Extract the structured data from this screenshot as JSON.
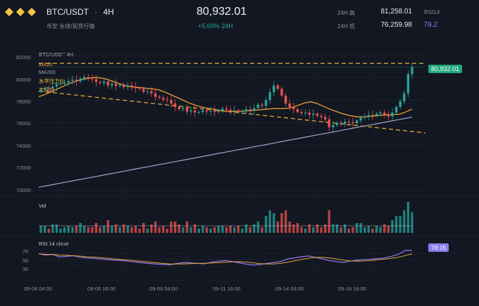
{
  "header": {
    "pair": "BTC/USDT",
    "separator": "·",
    "timeframe": "4H",
    "subtitle": "币安 永续/现货行情",
    "price": "80,932.01",
    "change": "+5.69% 24H",
    "stats": {
      "high_label": "24H 高",
      "high_value": "81,258.01",
      "low_label": "24H 低",
      "low_value": "76,259.98",
      "rsi_label": "RSI14",
      "rsi_value": "78.2"
    }
  },
  "main_panel": {
    "title": "BTC/USDT 4H",
    "legend": [
      "MA20",
      "MA200",
      "水平压力位",
      "支撑线"
    ],
    "y_ticks": [
      "82000",
      "80000",
      "78000",
      "76000",
      "74000",
      "72000",
      "70000"
    ],
    "last_price_tag": "80,932.01"
  },
  "volume_panel": {
    "title": "Vol"
  },
  "rsi_panel": {
    "title": "RSI 14 close",
    "y_ticks": [
      "70",
      "50",
      "30"
    ],
    "value_tag": "78.15"
  },
  "x_ticks": [
    "09-04 04:00",
    "09-06 16:00",
    "09-09 04:00",
    "09-11 16:00",
    "09-14 04:00",
    "09-16 16:00"
  ],
  "colors": {
    "up": "#26a69a",
    "down": "#ef5350",
    "ma20": "#f0a030",
    "ma200": "#9aa6c8",
    "resistance": "#f5c842",
    "support": "#e8a43a",
    "rsi": "#8e7cf0",
    "rsi_ma": "#e8a43a"
  },
  "chart_data": [
    {
      "type": "candlestick",
      "title": "BTC/USDT 4H",
      "ylim": [
        70000,
        82000
      ],
      "series": [
        {
          "name": "MA20",
          "values": [
            78300,
            78500,
            78750,
            79000,
            79250,
            79500,
            79700,
            79850,
            79950,
            80000,
            79950,
            79800,
            79600,
            79400,
            79250,
            79150,
            79100,
            79050,
            79000,
            78900,
            78700,
            78450,
            78200,
            77950,
            77700,
            77500,
            77350,
            77250,
            77150,
            77050,
            77000,
            77000,
            77020,
            77050,
            77100,
            77150,
            77200,
            77250,
            77250,
            77250,
            77350,
            77550,
            77750,
            77850,
            77700,
            77450,
            77200,
            77000,
            76800,
            76650,
            76550,
            76500,
            76550,
            76600,
            76650,
            76700,
            76720,
            76750,
            76950,
            77200
          ]
        },
        {
          "name": "MA200",
          "values": [
            70300,
            70500,
            70700,
            70900,
            71100,
            71300,
            71500,
            71700,
            71900,
            72100,
            72300,
            72500,
            72700,
            72900,
            73100,
            73300,
            73500,
            73700,
            73900,
            74100,
            74300,
            74500,
            74700,
            74900,
            75100,
            75300,
            75500,
            75700,
            75900,
            76100,
            76300,
            76500
          ]
        },
        {
          "name": "水平压力位",
          "values": [
            81250
          ]
        },
        {
          "name": "支撑线",
          "values": [
            78800,
            75100
          ]
        },
        {
          "name": "收盘价",
          "values": [
            78900,
            79050,
            79000,
            79200,
            79400,
            79450,
            79550,
            79700,
            79800,
            79650,
            79900,
            80050,
            79950,
            79850,
            79600,
            79500,
            79650,
            79300,
            79450,
            79250,
            79350,
            79150,
            79300,
            79200,
            79050,
            79000,
            78750,
            78800,
            78600,
            78300,
            78200,
            78050,
            78000,
            77700,
            77400,
            77200,
            77300,
            77000,
            77100,
            76900,
            76950,
            77100,
            77000,
            77050,
            76950,
            77100,
            77250,
            77150,
            77000,
            77100,
            76950,
            77000,
            77200,
            77100,
            77300,
            77600,
            77500,
            78000,
            78700,
            79300,
            79000,
            78400,
            77700,
            77400,
            77200,
            76950,
            76850,
            76900,
            76700,
            76800,
            76600,
            76500,
            76300,
            75600,
            75800,
            76000,
            75900,
            76100,
            76050,
            75950,
            76200,
            76450,
            76550,
            76700,
            76650,
            76800,
            76900,
            76700,
            76550,
            76900,
            77400,
            77900,
            78600,
            80300,
            80932
          ]
        }
      ]
    },
    {
      "type": "line",
      "title": "RSI 14 close",
      "ylim": [
        0,
        100
      ],
      "series": [
        {
          "name": "RSI 14 close",
          "values": [
            68,
            64,
            66,
            58,
            60,
            62,
            57,
            55,
            54,
            52,
            50,
            48,
            47,
            45,
            42,
            40,
            38,
            36,
            35,
            34,
            38,
            41,
            40,
            38,
            37,
            42,
            45,
            47,
            44,
            40,
            36,
            33,
            35,
            38,
            41,
            44,
            52,
            55,
            59,
            61,
            57,
            52,
            47,
            44,
            41,
            45,
            48,
            50,
            51,
            53,
            55,
            60,
            66,
            78,
            78.15
          ]
        }
      ]
    }
  ]
}
